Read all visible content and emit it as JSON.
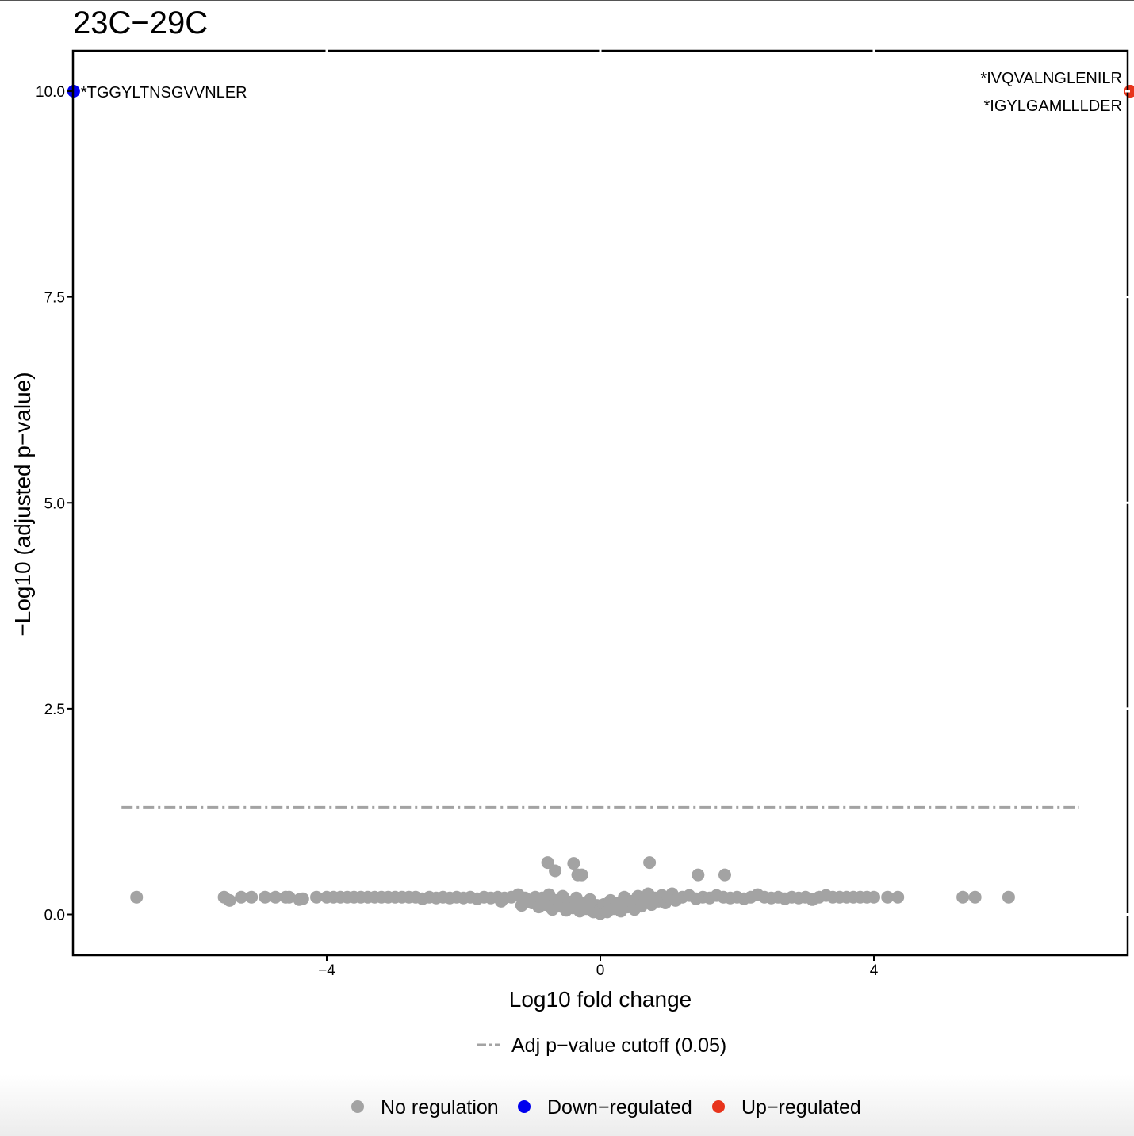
{
  "chart_data": {
    "type": "scatter",
    "title": "23C−29C",
    "xlabel": "Log10 fold change",
    "ylabel": "−Log10 (adjusted p−value)",
    "xlim": [
      -7.7,
      7.75
    ],
    "ylim": [
      -0.2,
      10.5
    ],
    "x_ticks": [
      -4,
      0,
      4
    ],
    "x_tick_labels": [
      "−4",
      "0",
      "4"
    ],
    "y_ticks": [
      0.0,
      2.5,
      5.0,
      7.5,
      10.0
    ],
    "y_tick_labels": [
      "0.0",
      "2.5",
      "5.0",
      "7.5",
      "10.0"
    ],
    "grid": false,
    "cutoff_line": {
      "y": 1.301,
      "x_range": [
        -7.0,
        7.0
      ],
      "label": "Adj p−value cutoff (0.05)",
      "color": "#a3a3a3",
      "style": "dot-dash"
    },
    "series": [
      {
        "name": "No regulation",
        "color": "#a3a3a3",
        "points": [
          [
            -6.78,
            0.21
          ],
          [
            -5.5,
            0.21
          ],
          [
            -5.42,
            0.17
          ],
          [
            -5.25,
            0.21
          ],
          [
            -5.1,
            0.21
          ],
          [
            -4.9,
            0.21
          ],
          [
            -4.75,
            0.21
          ],
          [
            -4.6,
            0.21
          ],
          [
            -4.55,
            0.21
          ],
          [
            -4.4,
            0.18
          ],
          [
            -4.35,
            0.19
          ],
          [
            -4.15,
            0.21
          ],
          [
            -4.0,
            0.21
          ],
          [
            -3.9,
            0.21
          ],
          [
            -3.8,
            0.21
          ],
          [
            -3.7,
            0.21
          ],
          [
            -3.6,
            0.21
          ],
          [
            -3.5,
            0.21
          ],
          [
            -3.4,
            0.21
          ],
          [
            -3.3,
            0.21
          ],
          [
            -3.2,
            0.21
          ],
          [
            -3.1,
            0.21
          ],
          [
            -3.0,
            0.21
          ],
          [
            -2.9,
            0.21
          ],
          [
            -2.8,
            0.21
          ],
          [
            -2.7,
            0.21
          ],
          [
            -2.6,
            0.19
          ],
          [
            -2.5,
            0.21
          ],
          [
            -2.4,
            0.2
          ],
          [
            -2.3,
            0.21
          ],
          [
            -2.2,
            0.2
          ],
          [
            -2.1,
            0.21
          ],
          [
            -2.0,
            0.2
          ],
          [
            -1.9,
            0.21
          ],
          [
            -1.8,
            0.19
          ],
          [
            -1.7,
            0.21
          ],
          [
            -1.6,
            0.2
          ],
          [
            -1.5,
            0.21
          ],
          [
            -1.4,
            0.2
          ],
          [
            -1.3,
            0.21
          ],
          [
            -1.45,
            0.16
          ],
          [
            -1.2,
            0.24
          ],
          [
            -1.1,
            0.2
          ],
          [
            -1.0,
            0.14
          ],
          [
            -1.15,
            0.11
          ],
          [
            -0.95,
            0.21
          ],
          [
            -0.9,
            0.09
          ],
          [
            -0.85,
            0.2
          ],
          [
            -0.8,
            0.12
          ],
          [
            -0.75,
            0.24
          ],
          [
            -0.7,
            0.06
          ],
          [
            -0.65,
            0.17
          ],
          [
            -0.6,
            0.1
          ],
          [
            -0.55,
            0.22
          ],
          [
            -0.5,
            0.05
          ],
          [
            -0.45,
            0.15
          ],
          [
            -0.4,
            0.08
          ],
          [
            -0.35,
            0.2
          ],
          [
            -0.3,
            0.04
          ],
          [
            -0.25,
            0.13
          ],
          [
            -0.2,
            0.07
          ],
          [
            -0.15,
            0.18
          ],
          [
            -0.1,
            0.03
          ],
          [
            -0.05,
            0.11
          ],
          [
            0.0,
            0.01
          ],
          [
            0.0,
            0.06
          ],
          [
            0.05,
            0.12
          ],
          [
            0.1,
            0.03
          ],
          [
            0.15,
            0.17
          ],
          [
            0.2,
            0.07
          ],
          [
            0.25,
            0.14
          ],
          [
            0.3,
            0.04
          ],
          [
            0.35,
            0.21
          ],
          [
            0.4,
            0.09
          ],
          [
            0.45,
            0.16
          ],
          [
            0.5,
            0.06
          ],
          [
            0.55,
            0.22
          ],
          [
            0.6,
            0.1
          ],
          [
            0.65,
            0.19
          ],
          [
            0.7,
            0.25
          ],
          [
            0.75,
            0.12
          ],
          [
            0.8,
            0.2
          ],
          [
            0.85,
            0.16
          ],
          [
            0.9,
            0.23
          ],
          [
            0.95,
            0.14
          ],
          [
            1.0,
            0.21
          ],
          [
            1.05,
            0.25
          ],
          [
            1.1,
            0.17
          ],
          [
            1.2,
            0.21
          ],
          [
            1.3,
            0.23
          ],
          [
            1.4,
            0.19
          ],
          [
            1.5,
            0.21
          ],
          [
            1.6,
            0.2
          ],
          [
            1.7,
            0.23
          ],
          [
            1.8,
            0.21
          ],
          [
            1.9,
            0.2
          ],
          [
            2.0,
            0.21
          ],
          [
            2.1,
            0.19
          ],
          [
            2.2,
            0.21
          ],
          [
            2.3,
            0.24
          ],
          [
            2.4,
            0.21
          ],
          [
            2.5,
            0.2
          ],
          [
            2.6,
            0.21
          ],
          [
            2.7,
            0.19
          ],
          [
            2.8,
            0.21
          ],
          [
            2.9,
            0.2
          ],
          [
            3.0,
            0.21
          ],
          [
            3.1,
            0.18
          ],
          [
            3.2,
            0.21
          ],
          [
            3.3,
            0.23
          ],
          [
            3.4,
            0.21
          ],
          [
            3.5,
            0.21
          ],
          [
            3.6,
            0.21
          ],
          [
            3.7,
            0.21
          ],
          [
            3.8,
            0.21
          ],
          [
            3.9,
            0.21
          ],
          [
            4.0,
            0.21
          ],
          [
            4.2,
            0.21
          ],
          [
            4.35,
            0.21
          ],
          [
            5.3,
            0.21
          ],
          [
            5.48,
            0.21
          ],
          [
            5.97,
            0.21
          ],
          [
            -0.77,
            0.63
          ],
          [
            -0.66,
            0.53
          ],
          [
            -0.39,
            0.62
          ],
          [
            -0.33,
            0.48
          ],
          [
            -0.27,
            0.48
          ],
          [
            0.72,
            0.63
          ],
          [
            1.43,
            0.48
          ],
          [
            1.82,
            0.48
          ]
        ]
      },
      {
        "name": "Down−regulated",
        "color": "#0000ee",
        "points": [
          [
            -7.7,
            10.0
          ]
        ],
        "labels": [
          "*TGGYLTNSGVVNLER"
        ]
      },
      {
        "name": "Up−regulated",
        "color": "#e8341c",
        "points": [
          [
            7.75,
            10.0
          ],
          [
            7.75,
            10.0
          ]
        ],
        "labels": [
          "*IVQVALNGLENILR",
          "*IGYLGAMLLLDER"
        ]
      }
    ],
    "legend": {
      "placement": "bottom",
      "line_entry": "Adj p−value cutoff (0.05)",
      "point_entries": [
        "No regulation",
        "Down−regulated",
        "Up−regulated"
      ]
    }
  }
}
